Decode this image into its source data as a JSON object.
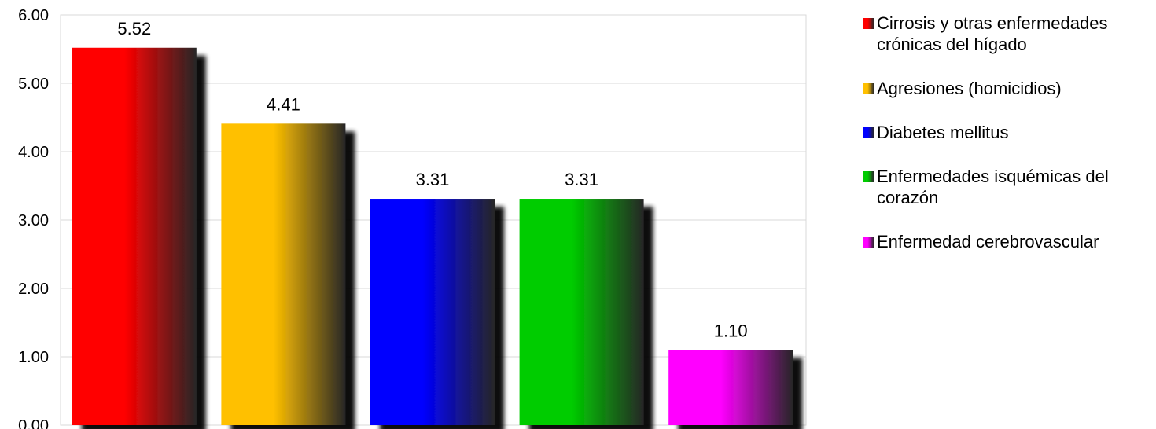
{
  "chart_data": {
    "type": "bar",
    "title": "",
    "xlabel": "",
    "ylabel": "",
    "ylim": [
      0,
      6
    ],
    "yticks": [
      "0.00",
      "1.00",
      "2.00",
      "3.00",
      "4.00",
      "5.00",
      "6.00"
    ],
    "grid": true,
    "legend_position": "right",
    "categories": [
      "Cirrosis y otras enfermedades crónicas del hígado",
      "Agresiones (homicidios)",
      "Diabetes mellitus",
      "Enfermedades isquémicas del corazón",
      "Enfermedad cerebrovascular"
    ],
    "values": [
      5.52,
      4.41,
      3.31,
      3.31,
      1.1
    ],
    "value_labels": [
      "5.52",
      "4.41",
      "3.31",
      "3.31",
      "1.10"
    ],
    "colors": [
      "#ff0000",
      "#ffc000",
      "#0000ff",
      "#00cc00",
      "#ff00ff"
    ]
  }
}
